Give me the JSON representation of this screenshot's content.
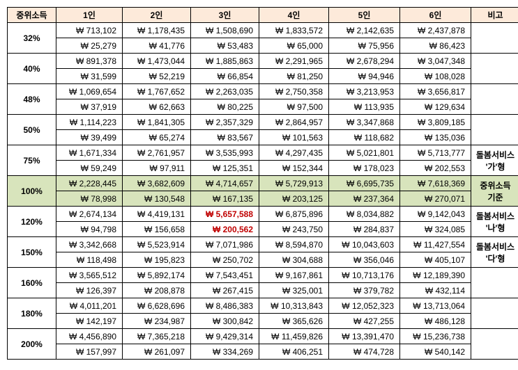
{
  "headers": [
    "중위소득",
    "1인",
    "2인",
    "3인",
    "4인",
    "5인",
    "6인",
    "비고"
  ],
  "rows": [
    {
      "pct": "32%",
      "main": [
        "713,102",
        "1,178,435",
        "1,508,690",
        "1,833,572",
        "2,142,635",
        "2,437,878"
      ],
      "sub": [
        "25,279",
        "41,776",
        "53,483",
        "65,000",
        "75,956",
        "86,423"
      ],
      "note": "",
      "highlight": false,
      "redCols": []
    },
    {
      "pct": "40%",
      "main": [
        "891,378",
        "1,473,044",
        "1,885,863",
        "2,291,965",
        "2,678,294",
        "3,047,348"
      ],
      "sub": [
        "31,599",
        "52,219",
        "66,854",
        "81,250",
        "94,946",
        "108,028"
      ],
      "note": "",
      "highlight": false,
      "redCols": []
    },
    {
      "pct": "48%",
      "main": [
        "1,069,654",
        "1,767,652",
        "2,263,035",
        "2,750,358",
        "3,213,953",
        "3,656,817"
      ],
      "sub": [
        "37,919",
        "62,663",
        "80,225",
        "97,500",
        "113,935",
        "129,634"
      ],
      "note": "",
      "highlight": false,
      "redCols": []
    },
    {
      "pct": "50%",
      "main": [
        "1,114,223",
        "1,841,305",
        "2,357,329",
        "2,864,957",
        "3,347,868",
        "3,809,185"
      ],
      "sub": [
        "39,499",
        "65,274",
        "83,567",
        "101,563",
        "118,682",
        "135,036"
      ],
      "note": "",
      "highlight": false,
      "redCols": []
    },
    {
      "pct": "75%",
      "main": [
        "1,671,334",
        "2,761,957",
        "3,535,993",
        "4,297,435",
        "5,021,801",
        "5,713,777"
      ],
      "sub": [
        "59,249",
        "97,911",
        "125,351",
        "152,344",
        "178,023",
        "202,553"
      ],
      "note": "돌봄서비스 '가'형",
      "highlight": false,
      "redCols": []
    },
    {
      "pct": "100%",
      "main": [
        "2,228,445",
        "3,682,609",
        "4,714,657",
        "5,729,913",
        "6,695,735",
        "7,618,369"
      ],
      "sub": [
        "78,998",
        "130,548",
        "167,135",
        "203,125",
        "237,364",
        "270,071"
      ],
      "note": "중위소득 기준",
      "highlight": true,
      "redCols": []
    },
    {
      "pct": "120%",
      "main": [
        "2,674,134",
        "4,419,131",
        "5,657,588",
        "6,875,896",
        "8,034,882",
        "9,142,043"
      ],
      "sub": [
        "94,798",
        "156,658",
        "200,562",
        "243,750",
        "284,837",
        "324,085"
      ],
      "note": "돌봄서비스 '나'형",
      "highlight": false,
      "redCols": [
        2
      ]
    },
    {
      "pct": "150%",
      "main": [
        "3,342,668",
        "5,523,914",
        "7,071,986",
        "8,594,870",
        "10,043,603",
        "11,427,554"
      ],
      "sub": [
        "118,498",
        "195,823",
        "250,702",
        "304,688",
        "356,046",
        "405,107"
      ],
      "note": "돌봄서비스 '다'형",
      "highlight": false,
      "redCols": []
    },
    {
      "pct": "160%",
      "main": [
        "3,565,512",
        "5,892,174",
        "7,543,451",
        "9,167,861",
        "10,713,176",
        "12,189,390"
      ],
      "sub": [
        "126,397",
        "208,878",
        "267,415",
        "325,001",
        "379,782",
        "432,114"
      ],
      "note": "",
      "highlight": false,
      "redCols": []
    },
    {
      "pct": "180%",
      "main": [
        "4,011,201",
        "6,628,696",
        "8,486,383",
        "10,313,843",
        "12,052,323",
        "13,713,064"
      ],
      "sub": [
        "142,197",
        "234,987",
        "300,842",
        "365,626",
        "427,255",
        "486,128"
      ],
      "note": "",
      "highlight": false,
      "redCols": []
    },
    {
      "pct": "200%",
      "main": [
        "4,456,890",
        "7,365,218",
        "9,429,314",
        "11,459,826",
        "13,391,470",
        "15,236,738"
      ],
      "sub": [
        "157,997",
        "261,097",
        "334,269",
        "406,251",
        "474,728",
        "540,142"
      ],
      "note": "",
      "highlight": false,
      "redCols": []
    }
  ],
  "currency_prefix": "₩ "
}
